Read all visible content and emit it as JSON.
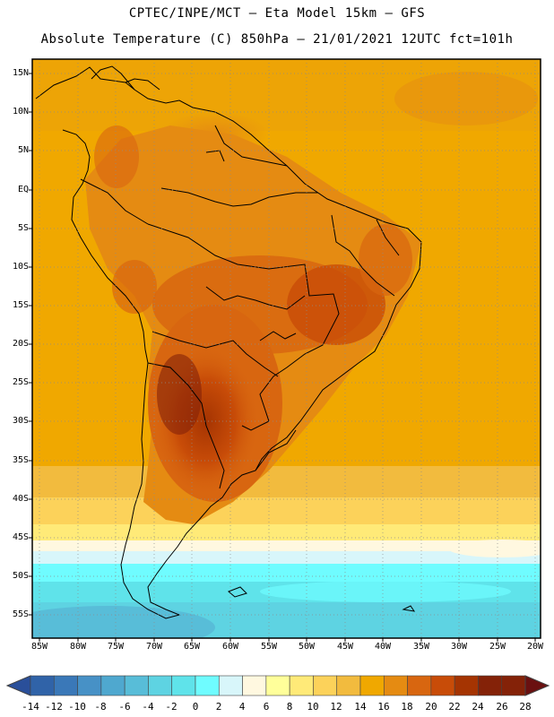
{
  "header": {
    "line1": "CPTEC/INPE/MCT –  Eta Model 15km – GFS",
    "line2": "Absolute Temperature (C) 850hPa – 21/01/2021 12UTC fct=101h"
  },
  "map": {
    "lat_labels": [
      "15N",
      "10N",
      "5N",
      "EQ",
      "5S",
      "10S",
      "15S",
      "20S",
      "25S",
      "30S",
      "35S",
      "40S",
      "45S",
      "50S",
      "55S"
    ],
    "lon_labels": [
      "85W",
      "80W",
      "75W",
      "70W",
      "65W",
      "60W",
      "55W",
      "50W",
      "45W",
      "40W",
      "35W",
      "30W",
      "25W",
      "20W"
    ]
  },
  "colorbar": {
    "labels": [
      "-14",
      "-12",
      "-10",
      "-8",
      "-6",
      "-4",
      "-2",
      "0",
      "2",
      "4",
      "6",
      "8",
      "10",
      "12",
      "14",
      "16",
      "18",
      "20",
      "22",
      "24",
      "26",
      "28"
    ],
    "colors": [
      "#2a4f9a",
      "#3063a8",
      "#3a78b8",
      "#4791c6",
      "#4fa8cf",
      "#58bdd8",
      "#5ed3e2",
      "#5fe3ea",
      "#6ffcff",
      "#d8f6fa",
      "#fff8e0",
      "#ffff9a",
      "#ffea78",
      "#fcd25a",
      "#f2bb3e",
      "#f0a800",
      "#e58b12",
      "#d86610",
      "#c84c08",
      "#a53402",
      "#842208",
      "#6a1010"
    ]
  }
}
